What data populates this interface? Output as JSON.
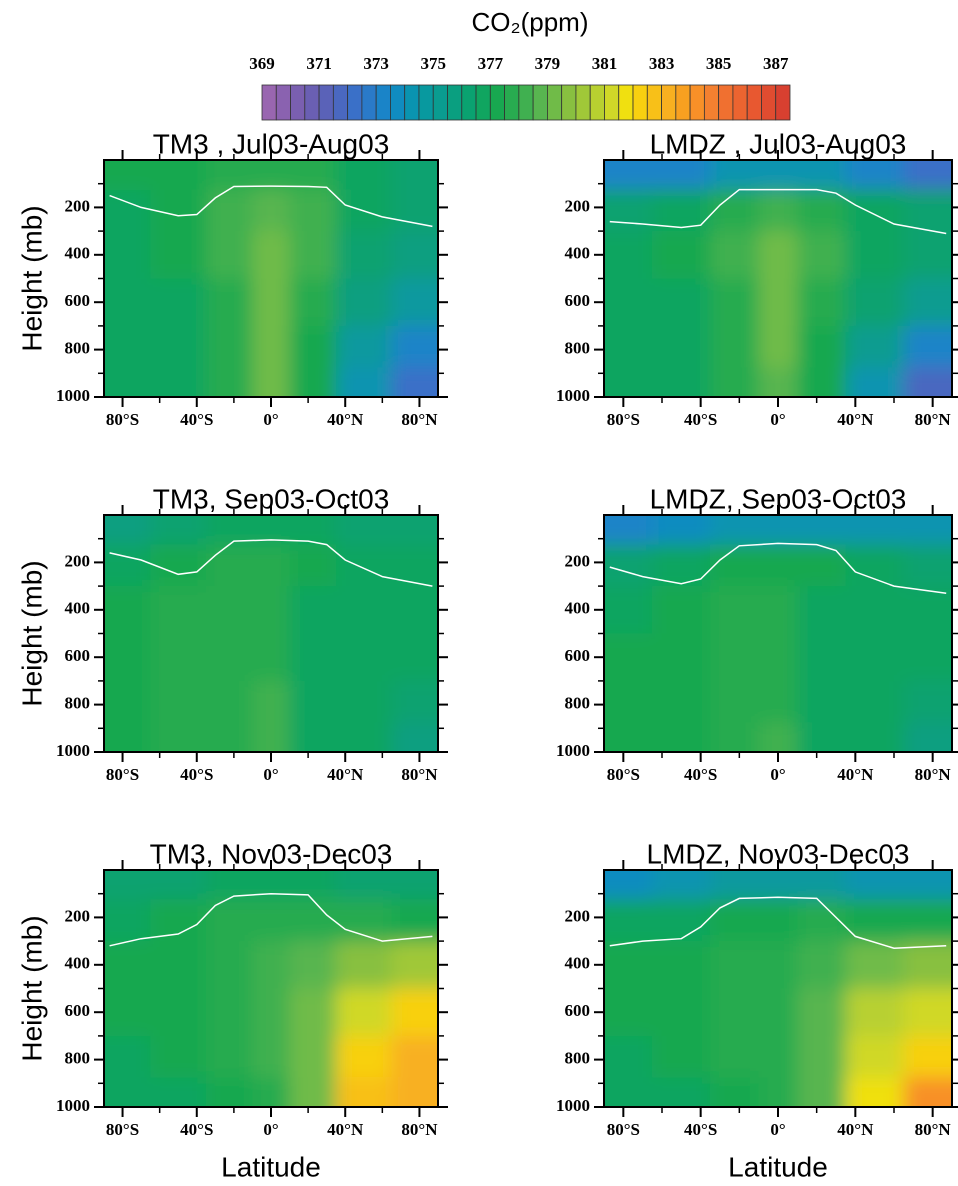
{
  "colorbar": {
    "title": "CO₂(ppm)",
    "zlim": [
      369,
      387.5
    ],
    "zticks": [
      369,
      371,
      373,
      375,
      377,
      379,
      381,
      383,
      385,
      387
    ],
    "colors": [
      "#9966b0",
      "#8a62b0",
      "#7a5fb0",
      "#6a5fb3",
      "#5a62b8",
      "#4a68c0",
      "#3a70c8",
      "#2a7ac8",
      "#1a84c8",
      "#108cc0",
      "#0a94b0",
      "#08999f",
      "#0a9c90",
      "#0a9f80",
      "#0aa270",
      "#10a560",
      "#18a850",
      "#28ab50",
      "#40b050",
      "#58b550",
      "#70bb48",
      "#88c040",
      "#a0c838",
      "#b8d030",
      "#d0d828",
      "#f0e010",
      "#f8d010",
      "#f8c018",
      "#f8b020",
      "#f8a020",
      "#f89028",
      "#f48030",
      "#f07030",
      "#ec6430",
      "#e85830",
      "#e04c30",
      "#d84030"
    ]
  },
  "grid": {
    "lat": [
      -80,
      -50,
      -20,
      0,
      20,
      50,
      80
    ],
    "pressure": [
      50,
      200,
      400,
      600,
      800,
      950
    ]
  },
  "chart_data": [
    {
      "type": "contour",
      "title": "TM3 , Jul03-Aug03",
      "ylabel": "Height (mb)",
      "xlim": [
        -90,
        90
      ],
      "ylim": [
        1000,
        0
      ],
      "xticks": [
        {
          "value": -80,
          "label": "80°S"
        },
        {
          "value": -40,
          "label": "40°S"
        },
        {
          "value": 0,
          "label": "0°"
        },
        {
          "value": 40,
          "label": "40°N"
        },
        {
          "value": 80,
          "label": "80°N"
        }
      ],
      "xminorticks": [
        -60,
        -20,
        20,
        60
      ],
      "yticks": [
        200,
        400,
        600,
        800,
        1000
      ],
      "yminorticks": [
        100,
        300,
        500,
        700,
        900
      ],
      "z": [
        [
          377,
          377,
          377.5,
          377.5,
          377.5,
          376.5,
          376
        ],
        [
          376.5,
          377,
          378,
          378.5,
          378,
          376.5,
          376
        ],
        [
          376.5,
          377,
          378,
          379,
          378,
          376,
          375.5
        ],
        [
          376.5,
          376.5,
          377.5,
          379,
          377.5,
          375.5,
          374.5
        ],
        [
          376.5,
          376.5,
          377.5,
          379,
          377,
          374.5,
          373
        ],
        [
          376.5,
          376.5,
          377.5,
          379,
          377,
          374,
          372
        ]
      ],
      "tropopause": {
        "color": "#ffffff",
        "x": [
          -87,
          -70,
          -50,
          -40,
          -30,
          -20,
          0,
          20,
          30,
          40,
          60,
          87
        ],
        "y": [
          150,
          200,
          235,
          230,
          160,
          112,
          110,
          112,
          115,
          190,
          240,
          280
        ]
      }
    },
    {
      "type": "contour",
      "title": "LMDZ , Jul03-Aug03",
      "xlim": [
        -90,
        90
      ],
      "ylim": [
        1000,
        0
      ],
      "xticks": [
        {
          "value": -80,
          "label": "80°S"
        },
        {
          "value": -40,
          "label": "40°S"
        },
        {
          "value": 0,
          "label": "0°"
        },
        {
          "value": 40,
          "label": "40°N"
        },
        {
          "value": 80,
          "label": "80°N"
        }
      ],
      "xminorticks": [
        -60,
        -20,
        20,
        60
      ],
      "yticks": [
        200,
        400,
        600,
        800,
        1000
      ],
      "yminorticks": [
        100,
        300,
        500,
        700,
        900
      ],
      "z": [
        [
          373,
          373,
          374,
          374,
          374,
          373,
          372
        ],
        [
          376,
          376.5,
          377.5,
          378,
          377.5,
          376.5,
          376
        ],
        [
          376.5,
          377,
          378,
          379,
          378,
          376.5,
          376
        ],
        [
          376.5,
          376.5,
          377.5,
          379,
          377.5,
          376,
          375
        ],
        [
          376.5,
          376.5,
          377.5,
          379,
          377,
          375,
          373
        ],
        [
          376.5,
          376.5,
          377.5,
          378.5,
          377,
          374,
          371.5
        ]
      ],
      "tropopause": {
        "color": "#ffffff",
        "x": [
          -87,
          -70,
          -50,
          -40,
          -30,
          -20,
          0,
          20,
          30,
          40,
          60,
          87
        ],
        "y": [
          260,
          270,
          285,
          275,
          190,
          125,
          125,
          125,
          140,
          190,
          270,
          310
        ]
      }
    },
    {
      "type": "contour",
      "title": "TM3, Sep03-Oct03",
      "ylabel": "Height (mb)",
      "xlim": [
        -90,
        90
      ],
      "ylim": [
        1000,
        0
      ],
      "xticks": [
        {
          "value": -80,
          "label": "80°S"
        },
        {
          "value": -40,
          "label": "40°S"
        },
        {
          "value": 0,
          "label": "0°"
        },
        {
          "value": 40,
          "label": "40°N"
        },
        {
          "value": 80,
          "label": "80°N"
        }
      ],
      "xminorticks": [
        -60,
        -20,
        20,
        60
      ],
      "yticks": [
        200,
        400,
        600,
        800,
        1000
      ],
      "yminorticks": [
        100,
        300,
        500,
        700,
        900
      ],
      "z": [
        [
          375.5,
          376,
          376.5,
          376.5,
          376.5,
          376,
          376
        ],
        [
          376.5,
          377,
          377.5,
          377.5,
          377,
          376.5,
          376.5
        ],
        [
          377,
          377.5,
          377.5,
          377.5,
          376.5,
          376.5,
          376.5
        ],
        [
          377,
          377.5,
          377.5,
          377.5,
          376.5,
          376.5,
          376.5
        ],
        [
          377,
          377.5,
          377.5,
          378,
          376.5,
          376.5,
          376
        ],
        [
          377,
          377.5,
          377.5,
          378,
          376.5,
          376.5,
          375.5
        ]
      ],
      "tropopause": {
        "color": "#ffffff",
        "x": [
          -87,
          -70,
          -50,
          -40,
          -30,
          -20,
          0,
          20,
          30,
          40,
          60,
          87
        ],
        "y": [
          160,
          190,
          250,
          240,
          170,
          110,
          105,
          110,
          125,
          190,
          260,
          300
        ]
      }
    },
    {
      "type": "contour",
      "title": "LMDZ, Sep03-Oct03",
      "xlim": [
        -90,
        90
      ],
      "ylim": [
        1000,
        0
      ],
      "xticks": [
        {
          "value": -80,
          "label": "80°S"
        },
        {
          "value": -40,
          "label": "40°S"
        },
        {
          "value": 0,
          "label": "0°"
        },
        {
          "value": 40,
          "label": "40°N"
        },
        {
          "value": 80,
          "label": "80°N"
        }
      ],
      "xminorticks": [
        -60,
        -20,
        20,
        60
      ],
      "yticks": [
        200,
        400,
        600,
        800,
        1000
      ],
      "yminorticks": [
        100,
        300,
        500,
        700,
        900
      ],
      "z": [
        [
          373,
          373.5,
          374,
          374,
          374,
          374,
          374
        ],
        [
          376,
          376.5,
          377,
          377,
          377,
          376.5,
          376
        ],
        [
          376.5,
          377,
          377.5,
          377.5,
          376.5,
          376.5,
          376.5
        ],
        [
          377,
          377,
          377.5,
          377.5,
          376.5,
          376.5,
          376.5
        ],
        [
          377,
          377,
          377.5,
          377.5,
          376.5,
          376.5,
          376
        ],
        [
          377,
          377,
          377.5,
          378,
          376.5,
          376.5,
          375.5
        ]
      ],
      "tropopause": {
        "color": "#ffffff",
        "x": [
          -87,
          -70,
          -50,
          -40,
          -30,
          -20,
          0,
          20,
          30,
          40,
          60,
          87
        ],
        "y": [
          220,
          260,
          290,
          270,
          190,
          130,
          120,
          125,
          150,
          240,
          300,
          330
        ]
      }
    },
    {
      "type": "contour",
      "title": "TM3, Nov03-Dec03",
      "ylabel": "Height (mb)",
      "xlabel": "Latitude",
      "xlim": [
        -90,
        90
      ],
      "ylim": [
        1000,
        0
      ],
      "xticks": [
        {
          "value": -80,
          "label": "80°S"
        },
        {
          "value": -40,
          "label": "40°S"
        },
        {
          "value": 0,
          "label": "0°"
        },
        {
          "value": 40,
          "label": "40°N"
        },
        {
          "value": 80,
          "label": "80°N"
        }
      ],
      "xminorticks": [
        -60,
        -20,
        20,
        60
      ],
      "yticks": [
        200,
        400,
        600,
        800,
        1000
      ],
      "yminorticks": [
        100,
        300,
        500,
        700,
        900
      ],
      "z": [
        [
          376,
          376,
          376.5,
          376.5,
          376.5,
          376,
          376
        ],
        [
          376.5,
          377,
          377.5,
          377.5,
          377.5,
          377.5,
          377
        ],
        [
          377,
          377,
          377.5,
          378,
          378.5,
          379.5,
          380
        ],
        [
          377,
          377,
          377.5,
          378,
          379,
          381,
          382
        ],
        [
          376.5,
          377,
          377.5,
          378,
          379,
          382,
          383
        ],
        [
          376.5,
          376.5,
          377,
          377.5,
          379,
          382.5,
          383
        ]
      ],
      "tropopause": {
        "color": "#ffffff",
        "x": [
          -87,
          -70,
          -50,
          -40,
          -30,
          -20,
          0,
          20,
          30,
          40,
          60,
          87
        ],
        "y": [
          320,
          290,
          270,
          230,
          150,
          110,
          100,
          105,
          190,
          250,
          300,
          280
        ]
      }
    },
    {
      "type": "contour",
      "title": "LMDZ, Nov03-Dec03",
      "xlabel": "Latitude",
      "xlim": [
        -90,
        90
      ],
      "ylim": [
        1000,
        0
      ],
      "xticks": [
        {
          "value": -80,
          "label": "80°S"
        },
        {
          "value": -40,
          "label": "40°S"
        },
        {
          "value": 0,
          "label": "0°"
        },
        {
          "value": 40,
          "label": "40°N"
        },
        {
          "value": 80,
          "label": "80°N"
        }
      ],
      "xminorticks": [
        -60,
        -20,
        20,
        60
      ],
      "yticks": [
        200,
        400,
        600,
        800,
        1000
      ],
      "yminorticks": [
        100,
        300,
        500,
        700,
        900
      ],
      "z": [
        [
          373.5,
          374,
          374.5,
          374.5,
          374.5,
          374,
          374
        ],
        [
          376.5,
          376.5,
          377,
          377,
          377.5,
          377,
          377
        ],
        [
          377,
          377,
          377.5,
          377.5,
          378,
          379,
          379.5
        ],
        [
          377,
          377,
          377.5,
          377.5,
          378.5,
          380.5,
          381
        ],
        [
          376.5,
          377,
          377.5,
          377.5,
          378.5,
          381,
          382
        ],
        [
          376.5,
          376.5,
          377,
          377.5,
          378.5,
          381.5,
          384
        ]
      ],
      "tropopause": {
        "color": "#ffffff",
        "x": [
          -87,
          -70,
          -50,
          -40,
          -30,
          -20,
          0,
          20,
          30,
          40,
          60,
          87
        ],
        "y": [
          320,
          300,
          290,
          240,
          160,
          120,
          115,
          120,
          200,
          280,
          330,
          320
        ]
      }
    }
  ]
}
